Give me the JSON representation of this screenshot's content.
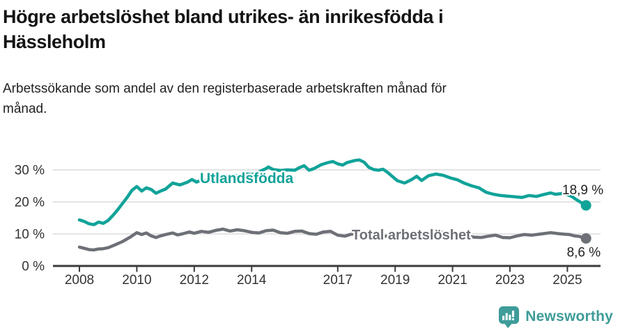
{
  "header": {
    "title_lines": [
      "Högre arbetslöshet bland utrikes- än inrikesfödda i",
      "Hässleholm"
    ],
    "subtitle_lines": [
      "Arbetssökande som andel av den registerbaserade arbetskraften månad för",
      "månad."
    ]
  },
  "colors": {
    "foreign_born_line": "#11a399",
    "total_line": "#6e7077",
    "gridline": "#dcdcdc",
    "axis": "#3b3b3b",
    "axis_text": "#333333",
    "annotation_text": "#222222",
    "title_text": "#141414",
    "brand_teal": "#3e9c99"
  },
  "chart_data": {
    "type": "line",
    "title": "Högre arbetslöshet bland utrikes- än inrikesfödda i Hässleholm",
    "subtitle": "Arbetssökande som andel av den registerbaserade arbetskraften månad för månad.",
    "unit": "%",
    "grid": "horizontal",
    "legend_position": "inline-labels",
    "x_ticks": [
      2008,
      2010,
      2012,
      2014,
      2017,
      2019,
      2021,
      2023,
      2025
    ],
    "x_range": [
      2008,
      2025.65
    ],
    "y_ticks": [
      {
        "value": 0,
        "label": "0 %"
      },
      {
        "value": 10,
        "label": "10 %"
      },
      {
        "value": 20,
        "label": "20 %"
      },
      {
        "value": 30,
        "label": "30 %"
      }
    ],
    "y_range": [
      0,
      34
    ],
    "series": [
      {
        "name": "Utlandsfödda",
        "color": "#11a399",
        "end_value": 18.9,
        "end_label": "18,9 %",
        "points": [
          [
            2008.0,
            14.4
          ],
          [
            2008.17,
            13.9
          ],
          [
            2008.33,
            13.2
          ],
          [
            2008.5,
            12.9
          ],
          [
            2008.67,
            13.7
          ],
          [
            2008.83,
            13.3
          ],
          [
            2009.0,
            14.2
          ],
          [
            2009.17,
            15.8
          ],
          [
            2009.33,
            17.5
          ],
          [
            2009.5,
            19.5
          ],
          [
            2009.67,
            21.5
          ],
          [
            2009.83,
            23.6
          ],
          [
            2010.0,
            24.8
          ],
          [
            2010.17,
            23.4
          ],
          [
            2010.33,
            24.4
          ],
          [
            2010.5,
            23.9
          ],
          [
            2010.67,
            22.7
          ],
          [
            2010.83,
            23.4
          ],
          [
            2011.0,
            24.0
          ],
          [
            2011.25,
            25.9
          ],
          [
            2011.5,
            25.3
          ],
          [
            2011.75,
            26.1
          ],
          [
            2011.92,
            27.0
          ],
          [
            2012.08,
            26.2
          ],
          [
            2012.25,
            26.8
          ],
          [
            2012.5,
            26.4
          ],
          [
            2012.75,
            27.4
          ],
          [
            2013.0,
            28.0
          ],
          [
            2013.25,
            28.4
          ],
          [
            2013.5,
            28.1
          ],
          [
            2013.75,
            28.8
          ],
          [
            2014.0,
            28.5
          ],
          [
            2014.25,
            29.4
          ],
          [
            2014.5,
            30.4
          ],
          [
            2014.58,
            30.9
          ],
          [
            2014.75,
            30.1
          ],
          [
            2015.0,
            29.8
          ],
          [
            2015.25,
            30.0
          ],
          [
            2015.5,
            29.9
          ],
          [
            2015.67,
            30.7
          ],
          [
            2015.83,
            31.3
          ],
          [
            2016.0,
            29.9
          ],
          [
            2016.17,
            30.4
          ],
          [
            2016.42,
            31.6
          ],
          [
            2016.67,
            32.3
          ],
          [
            2016.83,
            32.6
          ],
          [
            2017.0,
            31.9
          ],
          [
            2017.17,
            31.5
          ],
          [
            2017.33,
            32.3
          ],
          [
            2017.58,
            32.9
          ],
          [
            2017.75,
            33.1
          ],
          [
            2017.92,
            32.4
          ],
          [
            2018.08,
            30.8
          ],
          [
            2018.25,
            30.1
          ],
          [
            2018.42,
            29.9
          ],
          [
            2018.58,
            30.2
          ],
          [
            2018.75,
            29.1
          ],
          [
            2018.92,
            27.8
          ],
          [
            2019.08,
            26.6
          ],
          [
            2019.33,
            25.9
          ],
          [
            2019.58,
            27.0
          ],
          [
            2019.75,
            28.0
          ],
          [
            2019.92,
            26.7
          ],
          [
            2020.17,
            28.2
          ],
          [
            2020.42,
            28.7
          ],
          [
            2020.67,
            28.3
          ],
          [
            2020.92,
            27.5
          ],
          [
            2021.17,
            26.9
          ],
          [
            2021.42,
            25.8
          ],
          [
            2021.67,
            25.0
          ],
          [
            2021.92,
            24.4
          ],
          [
            2022.17,
            23.0
          ],
          [
            2022.42,
            22.4
          ],
          [
            2022.67,
            22.0
          ],
          [
            2022.92,
            21.8
          ],
          [
            2023.17,
            21.6
          ],
          [
            2023.42,
            21.4
          ],
          [
            2023.67,
            22.0
          ],
          [
            2023.92,
            21.7
          ],
          [
            2024.17,
            22.3
          ],
          [
            2024.42,
            22.8
          ],
          [
            2024.58,
            22.4
          ],
          [
            2024.83,
            22.6
          ],
          [
            2025.0,
            22.3
          ],
          [
            2025.17,
            21.6
          ],
          [
            2025.33,
            20.6
          ],
          [
            2025.5,
            19.7
          ],
          [
            2025.65,
            18.9
          ]
        ]
      },
      {
        "name": "Total arbetslöshet",
        "color": "#6e7077",
        "end_value": 8.6,
        "end_label": "8,6 %",
        "points": [
          [
            2008.0,
            5.9
          ],
          [
            2008.17,
            5.5
          ],
          [
            2008.33,
            5.1
          ],
          [
            2008.5,
            5.0
          ],
          [
            2008.67,
            5.3
          ],
          [
            2008.83,
            5.4
          ],
          [
            2009.0,
            5.7
          ],
          [
            2009.25,
            6.6
          ],
          [
            2009.5,
            7.6
          ],
          [
            2009.75,
            8.9
          ],
          [
            2010.0,
            10.4
          ],
          [
            2010.17,
            9.8
          ],
          [
            2010.33,
            10.3
          ],
          [
            2010.5,
            9.4
          ],
          [
            2010.67,
            8.9
          ],
          [
            2010.83,
            9.4
          ],
          [
            2011.0,
            9.8
          ],
          [
            2011.25,
            10.3
          ],
          [
            2011.42,
            9.7
          ],
          [
            2011.58,
            10.0
          ],
          [
            2011.83,
            10.6
          ],
          [
            2012.0,
            10.2
          ],
          [
            2012.25,
            10.8
          ],
          [
            2012.5,
            10.5
          ],
          [
            2012.75,
            11.1
          ],
          [
            2013.0,
            11.5
          ],
          [
            2013.25,
            10.9
          ],
          [
            2013.5,
            11.3
          ],
          [
            2013.75,
            11.0
          ],
          [
            2014.0,
            10.5
          ],
          [
            2014.25,
            10.3
          ],
          [
            2014.5,
            11.0
          ],
          [
            2014.75,
            11.2
          ],
          [
            2015.0,
            10.4
          ],
          [
            2015.25,
            10.2
          ],
          [
            2015.5,
            10.8
          ],
          [
            2015.75,
            10.9
          ],
          [
            2016.0,
            10.1
          ],
          [
            2016.25,
            9.9
          ],
          [
            2016.5,
            10.6
          ],
          [
            2016.75,
            10.8
          ],
          [
            2017.0,
            9.6
          ],
          [
            2017.25,
            9.3
          ],
          [
            2017.5,
            10.0
          ],
          [
            2017.75,
            9.9
          ],
          [
            2018.0,
            9.6
          ],
          [
            2018.25,
            9.3
          ],
          [
            2018.5,
            9.5
          ],
          [
            2018.75,
            9.2
          ],
          [
            2019.0,
            9.0
          ],
          [
            2019.25,
            8.8
          ],
          [
            2019.5,
            9.1
          ],
          [
            2019.75,
            9.3
          ],
          [
            2020.0,
            9.5
          ],
          [
            2020.25,
            10.2
          ],
          [
            2020.5,
            10.6
          ],
          [
            2020.75,
            10.4
          ],
          [
            2021.0,
            10.0
          ],
          [
            2021.25,
            9.7
          ],
          [
            2021.5,
            9.3
          ],
          [
            2021.75,
            9.0
          ],
          [
            2022.0,
            8.9
          ],
          [
            2022.25,
            9.3
          ],
          [
            2022.5,
            9.6
          ],
          [
            2022.75,
            8.9
          ],
          [
            2023.0,
            8.8
          ],
          [
            2023.25,
            9.4
          ],
          [
            2023.5,
            9.8
          ],
          [
            2023.75,
            9.6
          ],
          [
            2024.0,
            9.9
          ],
          [
            2024.25,
            10.2
          ],
          [
            2024.42,
            10.4
          ],
          [
            2024.67,
            10.1
          ],
          [
            2024.92,
            9.9
          ],
          [
            2025.08,
            9.8
          ],
          [
            2025.25,
            9.4
          ],
          [
            2025.42,
            9.2
          ],
          [
            2025.65,
            8.6
          ]
        ]
      }
    ]
  },
  "footer": {
    "brand": "Newsworthy",
    "logo_icon": "newsworthy-chart-bubble-icon"
  }
}
